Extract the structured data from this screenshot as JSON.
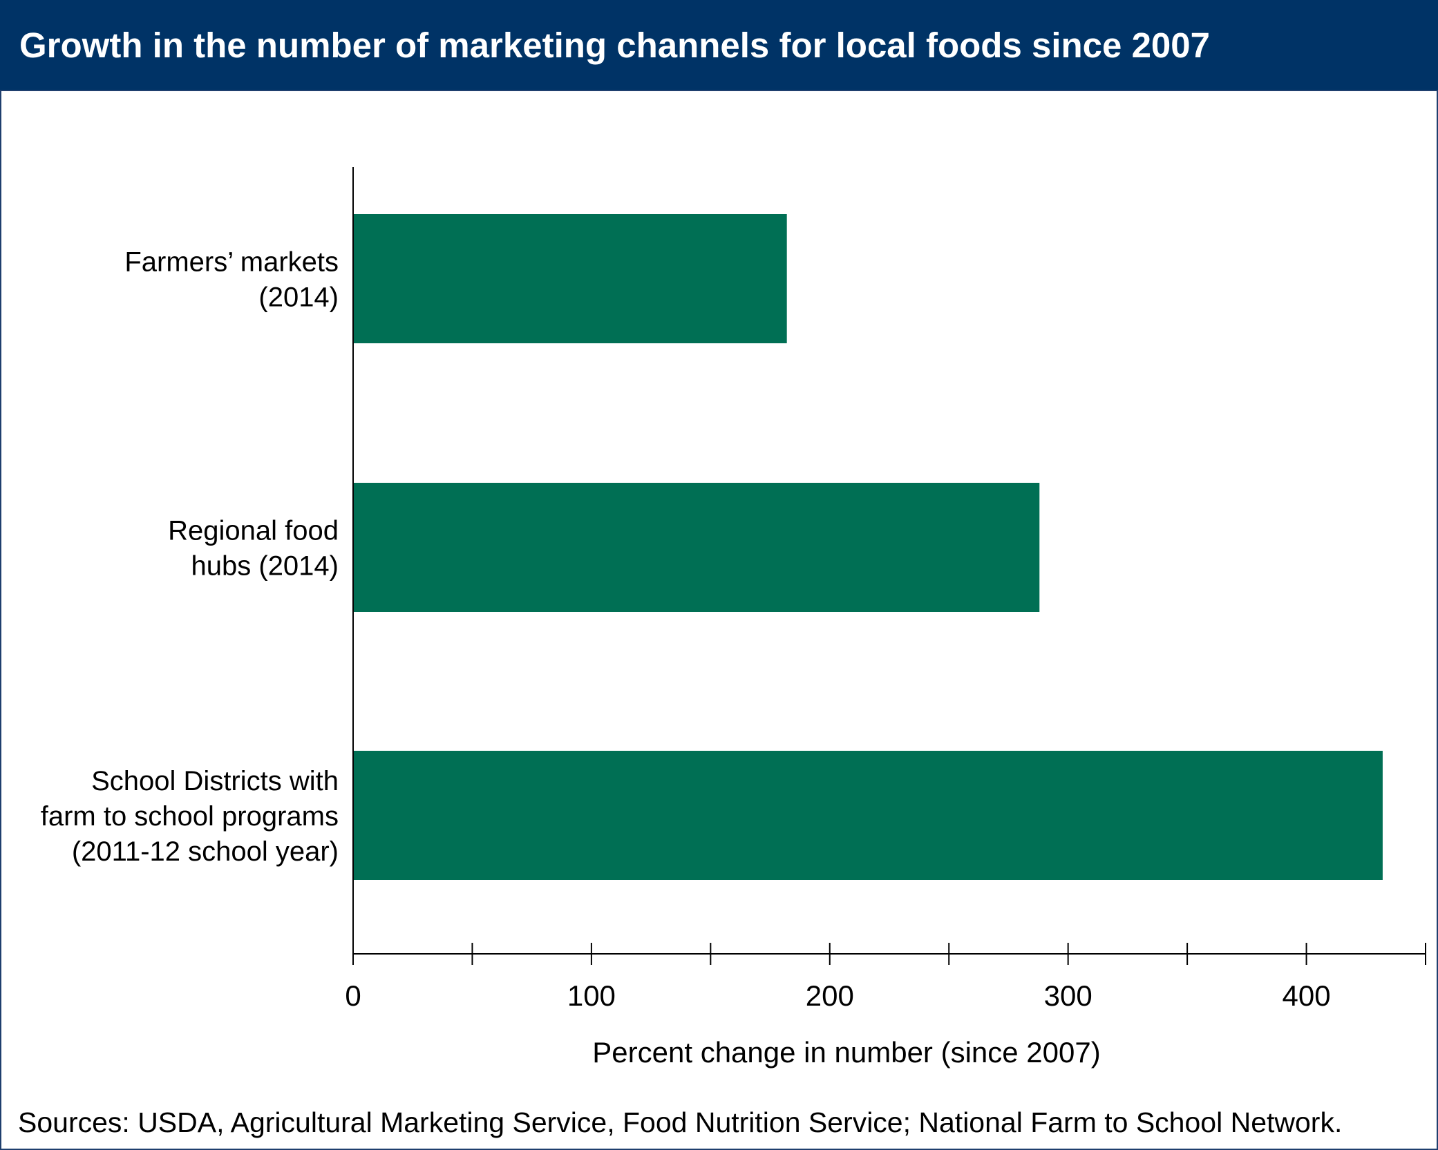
{
  "chart_data": {
    "type": "bar",
    "orientation": "horizontal",
    "title": "Growth in the number of marketing channels for local foods since 2007",
    "categories": [
      [
        "Farmers’ markets",
        "(2014)"
      ],
      [
        "Regional food",
        "hubs (2014)"
      ],
      [
        "School Districts with",
        "farm to school programs",
        "(2011-12 school year)"
      ]
    ],
    "values": [
      182,
      288,
      432
    ],
    "xlabel": "Percent change in number (since 2007)",
    "ylabel": "",
    "xlim": [
      0,
      450
    ],
    "xticks": [
      0,
      100,
      200,
      300,
      400
    ],
    "minor_ticks": [
      50,
      150,
      250,
      350,
      450
    ],
    "grid": false,
    "legend": "none",
    "bar_color": "#006f54",
    "source": "Sources: USDA, Agricultural Marketing Service, Food Nutrition Service; National Farm to School Network."
  },
  "colors": {
    "title_bar": "#003366",
    "title_text": "#ffffff",
    "axis": "#000000"
  }
}
